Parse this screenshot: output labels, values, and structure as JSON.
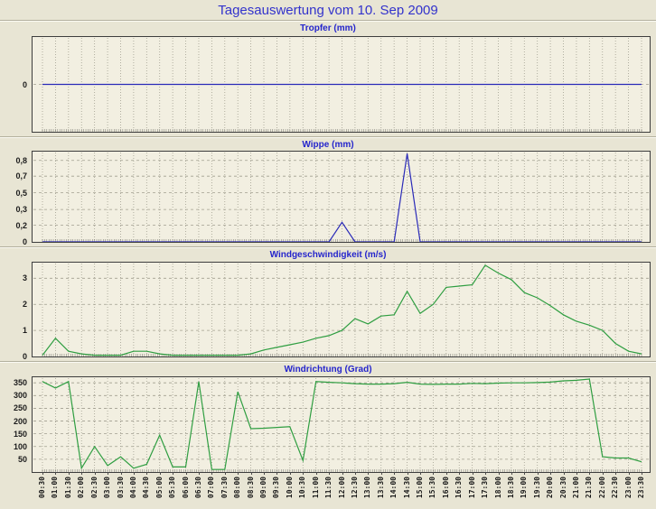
{
  "header": {
    "title": "Tagesauswertung vom 10. Sep 2009"
  },
  "x_axis_labels": [
    "00:30",
    "01:00",
    "01:30",
    "02:00",
    "02:30",
    "03:00",
    "03:30",
    "04:00",
    "04:30",
    "05:00",
    "05:30",
    "06:00",
    "06:30",
    "07:00",
    "07:30",
    "08:00",
    "08:30",
    "09:00",
    "09:30",
    "10:00",
    "10:30",
    "11:00",
    "11:30",
    "12:00",
    "12:30",
    "13:00",
    "13:30",
    "14:00",
    "14:30",
    "15:00",
    "15:30",
    "16:00",
    "16:30",
    "17:00",
    "17:30",
    "18:00",
    "18:30",
    "19:00",
    "19:30",
    "20:00",
    "20:30",
    "21:00",
    "21:30",
    "22:00",
    "22:30",
    "23:00",
    "23:30"
  ],
  "chart_data": [
    {
      "type": "line",
      "title": "Tropfer (mm)",
      "color": "#2a2ab8",
      "ylim": [
        -1,
        1
      ],
      "grid": true,
      "yticks": [
        {
          "value": 0,
          "label": "0"
        }
      ],
      "values": [
        0,
        0,
        0,
        0,
        0,
        0,
        0,
        0,
        0,
        0,
        0,
        0,
        0,
        0,
        0,
        0,
        0,
        0,
        0,
        0,
        0,
        0,
        0,
        0,
        0,
        0,
        0,
        0,
        0,
        0,
        0,
        0,
        0,
        0,
        0,
        0,
        0,
        0,
        0,
        0,
        0,
        0,
        0,
        0,
        0,
        0,
        0
      ]
    },
    {
      "type": "line",
      "title": "Wippe (mm)",
      "color": "#2a2ab8",
      "ylim": [
        0,
        0.92
      ],
      "grid": true,
      "yticks": [
        {
          "value": 0,
          "label": "0"
        },
        {
          "value": 0.17,
          "label": "0,2"
        },
        {
          "value": 0.33,
          "label": "0,3"
        },
        {
          "value": 0.5,
          "label": "0,5"
        },
        {
          "value": 0.67,
          "label": "0,7"
        },
        {
          "value": 0.83,
          "label": "0,8"
        }
      ],
      "values": [
        0,
        0,
        0,
        0,
        0,
        0,
        0,
        0,
        0,
        0,
        0,
        0,
        0,
        0,
        0,
        0,
        0,
        0,
        0,
        0,
        0,
        0,
        0,
        0.2,
        0,
        0,
        0,
        0,
        0.9,
        0,
        0,
        0,
        0,
        0,
        0,
        0,
        0,
        0,
        0,
        0,
        0,
        0,
        0,
        0,
        0,
        0,
        0
      ]
    },
    {
      "type": "line",
      "title": "Windgeschwindigkeit (m/s)",
      "color": "#2f9e41",
      "ylim": [
        0,
        3.6
      ],
      "grid": true,
      "yticks": [
        {
          "value": 0,
          "label": "0"
        },
        {
          "value": 1,
          "label": "1"
        },
        {
          "value": 2,
          "label": "2"
        },
        {
          "value": 3,
          "label": "3"
        }
      ],
      "values": [
        0.05,
        0.7,
        0.2,
        0.1,
        0.05,
        0.05,
        0.05,
        0.2,
        0.2,
        0.1,
        0.05,
        0.05,
        0.05,
        0.05,
        0.05,
        0.05,
        0.1,
        0.25,
        0.35,
        0.45,
        0.55,
        0.7,
        0.8,
        1.0,
        1.45,
        1.25,
        1.55,
        1.6,
        2.5,
        1.65,
        2.0,
        2.65,
        2.7,
        2.75,
        3.5,
        3.2,
        2.95,
        2.45,
        2.25,
        1.95,
        1.6,
        1.35,
        1.2,
        1.0,
        0.5,
        0.2,
        0.1
      ]
    },
    {
      "type": "line",
      "title": "Windrichtung (Grad)",
      "color": "#2f9e41",
      "ylim": [
        0,
        372
      ],
      "grid": true,
      "yticks": [
        {
          "value": 50,
          "label": "50"
        },
        {
          "value": 100,
          "label": "100"
        },
        {
          "value": 150,
          "label": "150"
        },
        {
          "value": 200,
          "label": "200"
        },
        {
          "value": 250,
          "label": "250"
        },
        {
          "value": 300,
          "label": "300"
        },
        {
          "value": 350,
          "label": "350"
        }
      ],
      "values": [
        355,
        330,
        355,
        15,
        100,
        25,
        60,
        15,
        30,
        145,
        20,
        20,
        355,
        10,
        10,
        315,
        170,
        172,
        175,
        178,
        45,
        355,
        352,
        350,
        347,
        345,
        345,
        347,
        352,
        345,
        344,
        345,
        345,
        348,
        347,
        349,
        350,
        350,
        351,
        353,
        358,
        360,
        365,
        60,
        55,
        55,
        40
      ]
    }
  ]
}
